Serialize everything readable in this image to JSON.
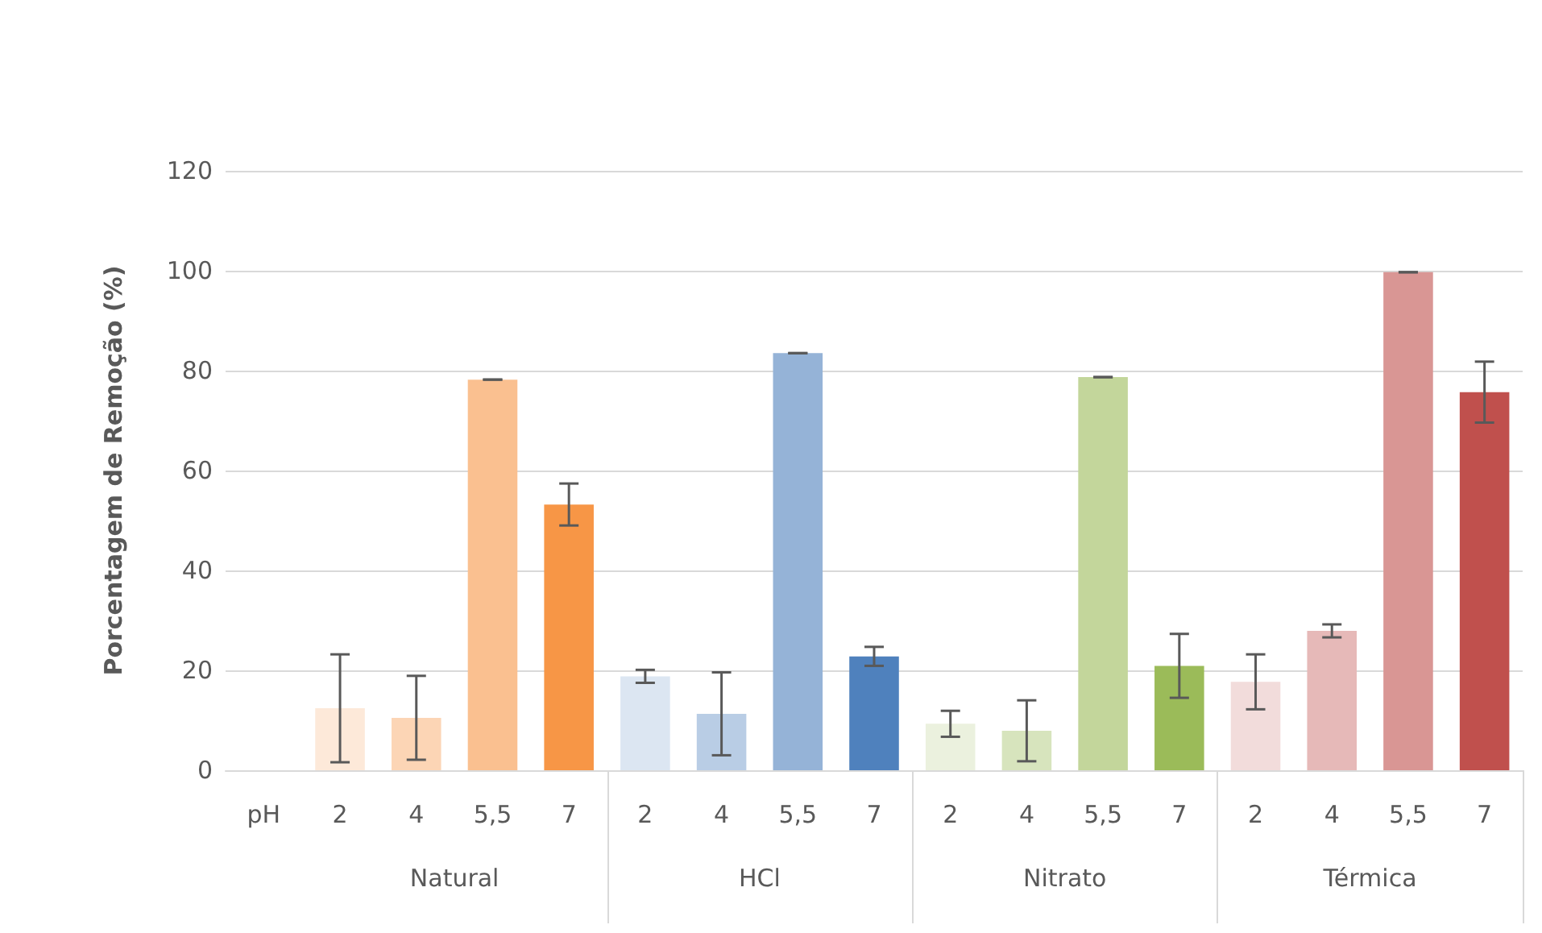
{
  "chart_data": {
    "type": "bar",
    "ylabel": "Porcentagem de Remoção (%)",
    "categories": [
      "pH",
      "2",
      "4",
      "5,5",
      "7",
      "2",
      "4",
      "5,5",
      "7",
      "2",
      "4",
      "5,5",
      "7",
      "2",
      "4",
      "5,5",
      "7"
    ],
    "values": [
      null,
      12.4,
      10.5,
      78.2,
      53.2,
      18.8,
      11.3,
      83.5,
      22.8,
      9.3,
      7.9,
      78.7,
      20.9,
      17.7,
      27.9,
      99.7,
      75.7
    ],
    "errors": [
      null,
      10.8,
      8.4,
      0,
      4.2,
      1.3,
      8.3,
      0,
      1.9,
      2.6,
      6.1,
      0,
      6.4,
      5.5,
      1.3,
      0,
      6.1
    ],
    "colors": [
      null,
      "#fde9d9",
      "#fcd5b5",
      "#fac090",
      "#f79646",
      "#dce6f2",
      "#b9cde5",
      "#95b3d7",
      "#4f81bd",
      "#ebf1de",
      "#d7e4bd",
      "#c3d69b",
      "#9bbb59",
      "#f2dcdb",
      "#e6b9b8",
      "#d99694",
      "#c0504d"
    ],
    "annotations": [
      "Natural",
      "HCl",
      "Nitrato",
      "Térmica"
    ],
    "ylim": [
      0,
      120
    ],
    "yticks": [
      0,
      20,
      40,
      60,
      80,
      100,
      120
    ],
    "grid": "y"
  }
}
